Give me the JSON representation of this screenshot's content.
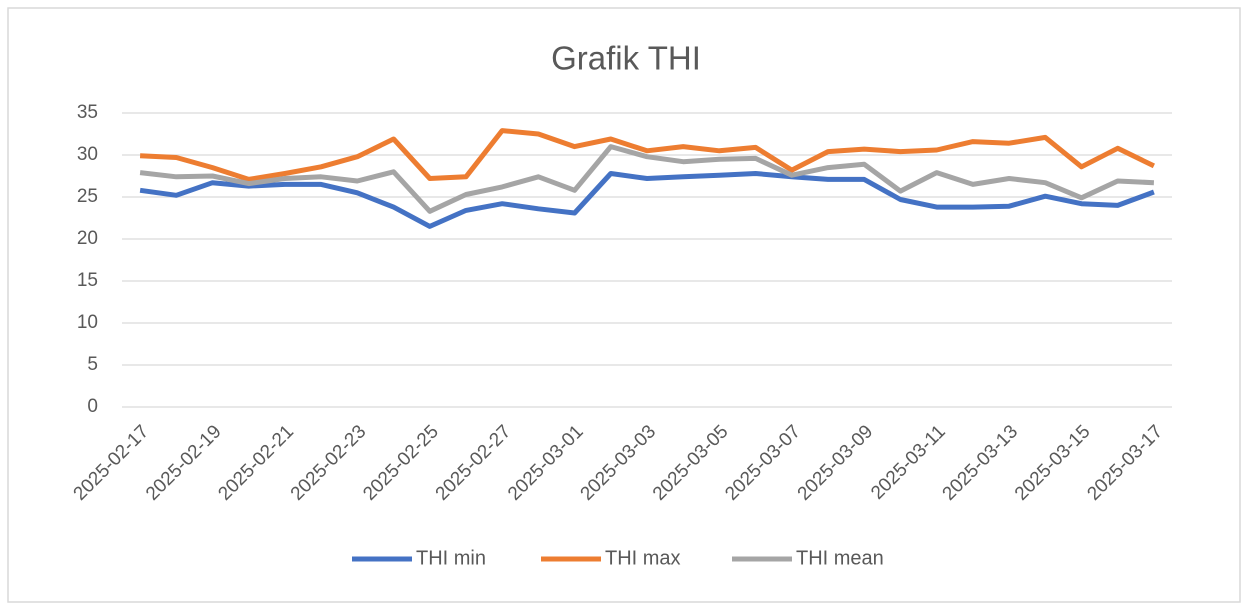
{
  "chart_data": {
    "type": "line",
    "title": "Grafik THI",
    "categories": [
      "2025-02-17",
      null,
      "2025-02-19",
      null,
      "2025-02-21",
      null,
      "2025-02-23",
      null,
      "2025-02-25",
      null,
      "2025-02-27",
      null,
      "2025-03-01",
      null,
      "2025-03-03",
      null,
      "2025-03-05",
      null,
      "2025-03-07",
      null,
      "2025-03-09",
      null,
      "2025-03-11",
      null,
      "2025-03-13",
      null,
      "2025-03-15",
      null,
      "2025-03-17"
    ],
    "series": [
      {
        "name": "THI min",
        "color": "#4472c4",
        "values": [
          25.8,
          25.2,
          26.7,
          26.3,
          26.5,
          26.5,
          25.5,
          23.8,
          21.5,
          23.4,
          24.2,
          23.6,
          23.1,
          27.8,
          27.2,
          27.4,
          27.6,
          27.8,
          27.4,
          27.1,
          27.1,
          24.7,
          23.8,
          23.8,
          23.9,
          25.1,
          24.2,
          24.0,
          25.6
        ]
      },
      {
        "name": "THI max",
        "color": "#ed7d31",
        "values": [
          29.9,
          29.7,
          28.5,
          27.1,
          27.8,
          28.6,
          29.8,
          31.9,
          27.2,
          27.4,
          32.9,
          32.5,
          31.0,
          31.9,
          30.5,
          31.0,
          30.5,
          30.9,
          28.2,
          30.4,
          30.7,
          30.4,
          30.6,
          31.6,
          31.4,
          32.1,
          28.6,
          30.8,
          28.7
        ]
      },
      {
        "name": "THI mean",
        "color": "#a5a5a5",
        "values": [
          27.9,
          27.4,
          27.5,
          26.6,
          27.2,
          27.4,
          26.9,
          28.0,
          23.3,
          25.3,
          26.2,
          27.4,
          25.8,
          31.0,
          29.8,
          29.2,
          29.5,
          29.6,
          27.6,
          28.5,
          28.9,
          25.7,
          27.9,
          26.5,
          27.2,
          26.7,
          24.9,
          26.9,
          26.7
        ]
      }
    ],
    "ylim": [
      0,
      35
    ],
    "yticks": [
      0,
      5,
      10,
      15,
      20,
      25,
      30,
      35
    ],
    "grid": true,
    "legend": "bottom"
  }
}
